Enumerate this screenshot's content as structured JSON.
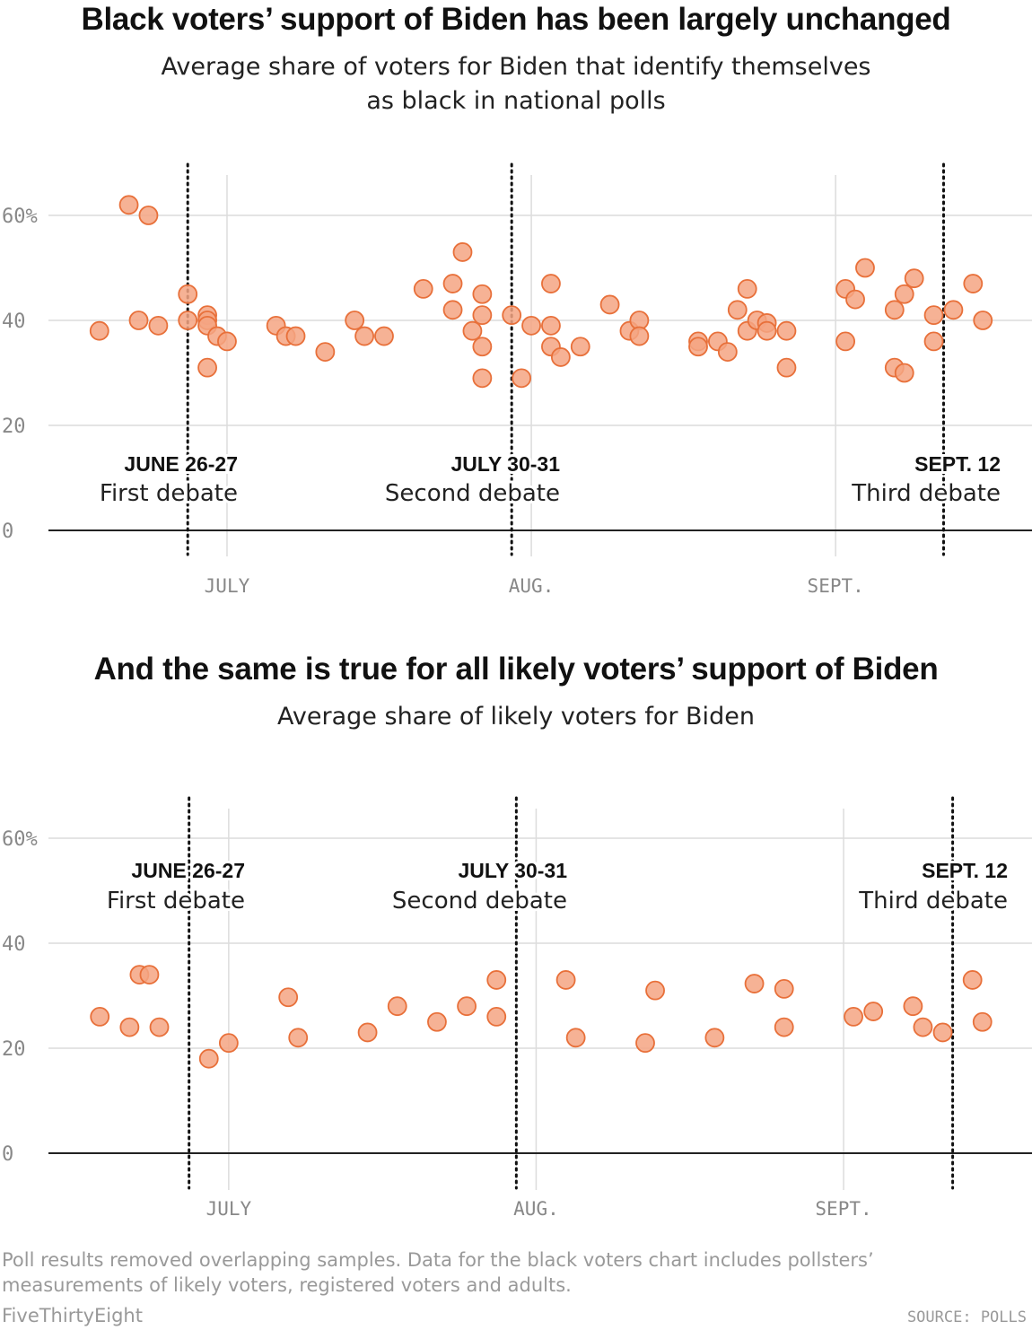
{
  "chart_data": [
    {
      "type": "scatter",
      "title": "Black voters’ support of Biden has been largely unchanged",
      "subtitle": "Average share of voters for Biden that identify themselves as black in national polls",
      "subtitle_lines": [
        "Average share of voters for Biden that identify themselves",
        "as black in national polls"
      ],
      "ylim": [
        0,
        65
      ],
      "y_ticks": [
        0,
        20,
        40,
        60
      ],
      "y_tick_labels": [
        "0",
        "20",
        "40",
        "60%"
      ],
      "x_range": [
        "2019-06-14",
        "2019-09-20"
      ],
      "months": [
        {
          "label": "JULY",
          "date": "2019-07-01"
        },
        {
          "label": "AUG.",
          "date": "2019-08-01"
        },
        {
          "label": "SEPT.",
          "date": "2019-09-01"
        }
      ],
      "events": [
        {
          "date_label": "JUNE 26-27",
          "label": "First debate",
          "date": "2019-06-27"
        },
        {
          "date_label": "JULY 30-31",
          "label": "Second debate",
          "date": "2019-07-30"
        },
        {
          "date_label": "SEPT. 12",
          "label": "Third debate",
          "date": "2019-09-12"
        }
      ],
      "points": [
        {
          "x": "2019-06-18",
          "y": 38
        },
        {
          "x": "2019-06-21",
          "y": 62
        },
        {
          "x": "2019-06-22",
          "y": 40
        },
        {
          "x": "2019-06-23",
          "y": 60
        },
        {
          "x": "2019-06-24",
          "y": 39
        },
        {
          "x": "2019-06-27",
          "y": 45
        },
        {
          "x": "2019-06-27",
          "y": 40
        },
        {
          "x": "2019-06-29",
          "y": 41
        },
        {
          "x": "2019-06-29",
          "y": 40
        },
        {
          "x": "2019-06-29",
          "y": 39
        },
        {
          "x": "2019-06-29",
          "y": 31
        },
        {
          "x": "2019-06-30",
          "y": 37
        },
        {
          "x": "2019-07-01",
          "y": 36
        },
        {
          "x": "2019-07-06",
          "y": 39
        },
        {
          "x": "2019-07-07",
          "y": 37
        },
        {
          "x": "2019-07-08",
          "y": 37
        },
        {
          "x": "2019-07-11",
          "y": 34
        },
        {
          "x": "2019-07-14",
          "y": 40
        },
        {
          "x": "2019-07-15",
          "y": 37
        },
        {
          "x": "2019-07-17",
          "y": 37
        },
        {
          "x": "2019-07-21",
          "y": 46
        },
        {
          "x": "2019-07-24",
          "y": 47
        },
        {
          "x": "2019-07-24",
          "y": 42
        },
        {
          "x": "2019-07-25",
          "y": 53
        },
        {
          "x": "2019-07-26",
          "y": 38
        },
        {
          "x": "2019-07-27",
          "y": 45
        },
        {
          "x": "2019-07-27",
          "y": 41
        },
        {
          "x": "2019-07-27",
          "y": 35
        },
        {
          "x": "2019-07-27",
          "y": 29
        },
        {
          "x": "2019-07-30",
          "y": 41
        },
        {
          "x": "2019-07-31",
          "y": 29
        },
        {
          "x": "2019-08-01",
          "y": 39
        },
        {
          "x": "2019-08-03",
          "y": 47
        },
        {
          "x": "2019-08-03",
          "y": 39
        },
        {
          "x": "2019-08-03",
          "y": 35
        },
        {
          "x": "2019-08-04",
          "y": 33
        },
        {
          "x": "2019-08-06",
          "y": 35
        },
        {
          "x": "2019-08-09",
          "y": 43
        },
        {
          "x": "2019-08-11",
          "y": 38
        },
        {
          "x": "2019-08-12",
          "y": 40
        },
        {
          "x": "2019-08-12",
          "y": 37
        },
        {
          "x": "2019-08-18",
          "y": 36
        },
        {
          "x": "2019-08-18",
          "y": 35
        },
        {
          "x": "2019-08-20",
          "y": 36
        },
        {
          "x": "2019-08-21",
          "y": 34
        },
        {
          "x": "2019-08-22",
          "y": 42
        },
        {
          "x": "2019-08-23",
          "y": 46
        },
        {
          "x": "2019-08-23",
          "y": 38
        },
        {
          "x": "2019-08-24",
          "y": 40
        },
        {
          "x": "2019-08-25",
          "y": 39.5
        },
        {
          "x": "2019-08-25",
          "y": 38
        },
        {
          "x": "2019-08-27",
          "y": 38
        },
        {
          "x": "2019-08-27",
          "y": 31
        },
        {
          "x": "2019-09-02",
          "y": 46
        },
        {
          "x": "2019-09-02",
          "y": 36
        },
        {
          "x": "2019-09-03",
          "y": 44
        },
        {
          "x": "2019-09-04",
          "y": 50
        },
        {
          "x": "2019-09-07",
          "y": 42
        },
        {
          "x": "2019-09-07",
          "y": 31
        },
        {
          "x": "2019-09-08",
          "y": 45
        },
        {
          "x": "2019-09-08",
          "y": 30
        },
        {
          "x": "2019-09-09",
          "y": 48
        },
        {
          "x": "2019-09-11",
          "y": 41
        },
        {
          "x": "2019-09-11",
          "y": 36
        },
        {
          "x": "2019-09-13",
          "y": 42
        },
        {
          "x": "2019-09-15",
          "y": 47
        },
        {
          "x": "2019-09-16",
          "y": 40
        }
      ]
    },
    {
      "type": "scatter",
      "title": "And the same is true for all likely voters’ support of Biden",
      "subtitle": "Average share of likely voters for Biden",
      "subtitle_lines": [
        "Average share of likely voters for Biden"
      ],
      "ylim": [
        0,
        65
      ],
      "y_ticks": [
        0,
        20,
        40,
        60
      ],
      "y_tick_labels": [
        "0",
        "20",
        "40",
        "60%"
      ],
      "x_range": [
        "2019-06-14",
        "2019-09-20"
      ],
      "months": [
        {
          "label": "JULY",
          "date": "2019-07-01"
        },
        {
          "label": "AUG.",
          "date": "2019-08-01"
        },
        {
          "label": "SEPT.",
          "date": "2019-09-01"
        }
      ],
      "events": [
        {
          "date_label": "JUNE 26-27",
          "label": "First debate",
          "date": "2019-06-27"
        },
        {
          "date_label": "JULY 30-31",
          "label": "Second debate",
          "date": "2019-07-30"
        },
        {
          "date_label": "SEPT. 12",
          "label": "Third debate",
          "date": "2019-09-12"
        }
      ],
      "points": [
        {
          "x": "2019-06-18",
          "y": 26
        },
        {
          "x": "2019-06-21",
          "y": 24
        },
        {
          "x": "2019-06-22",
          "y": 34
        },
        {
          "x": "2019-06-23",
          "y": 34
        },
        {
          "x": "2019-06-24",
          "y": 24
        },
        {
          "x": "2019-06-29",
          "y": 18
        },
        {
          "x": "2019-07-01",
          "y": 21
        },
        {
          "x": "2019-07-07",
          "y": 29.7
        },
        {
          "x": "2019-07-08",
          "y": 22
        },
        {
          "x": "2019-07-15",
          "y": 23
        },
        {
          "x": "2019-07-18",
          "y": 28
        },
        {
          "x": "2019-07-22",
          "y": 25
        },
        {
          "x": "2019-07-25",
          "y": 28
        },
        {
          "x": "2019-07-28",
          "y": 33
        },
        {
          "x": "2019-07-28",
          "y": 26
        },
        {
          "x": "2019-08-04",
          "y": 33
        },
        {
          "x": "2019-08-05",
          "y": 22
        },
        {
          "x": "2019-08-12",
          "y": 21
        },
        {
          "x": "2019-08-13",
          "y": 31
        },
        {
          "x": "2019-08-19",
          "y": 22
        },
        {
          "x": "2019-08-23",
          "y": 32.3
        },
        {
          "x": "2019-08-26",
          "y": 31.3
        },
        {
          "x": "2019-08-26",
          "y": 24
        },
        {
          "x": "2019-09-02",
          "y": 26
        },
        {
          "x": "2019-09-04",
          "y": 27
        },
        {
          "x": "2019-09-08",
          "y": 28
        },
        {
          "x": "2019-09-09",
          "y": 24
        },
        {
          "x": "2019-09-11",
          "y": 23
        },
        {
          "x": "2019-09-14",
          "y": 33
        },
        {
          "x": "2019-09-15",
          "y": 25
        }
      ]
    }
  ],
  "footnote": {
    "line1": "Poll results removed overlapping samples. Data for the black voters chart includes pollsters’",
    "line2": "measurements of likely voters, registered voters and adults."
  },
  "brand": "FiveThirtyEight",
  "source": "SOURCE: POLLS",
  "colors": {
    "point_fill": "#f4a582",
    "point_stroke": "#e8703a",
    "grid": "#dcdcdc",
    "baseline": "#222222",
    "event_line": "#111111"
  }
}
